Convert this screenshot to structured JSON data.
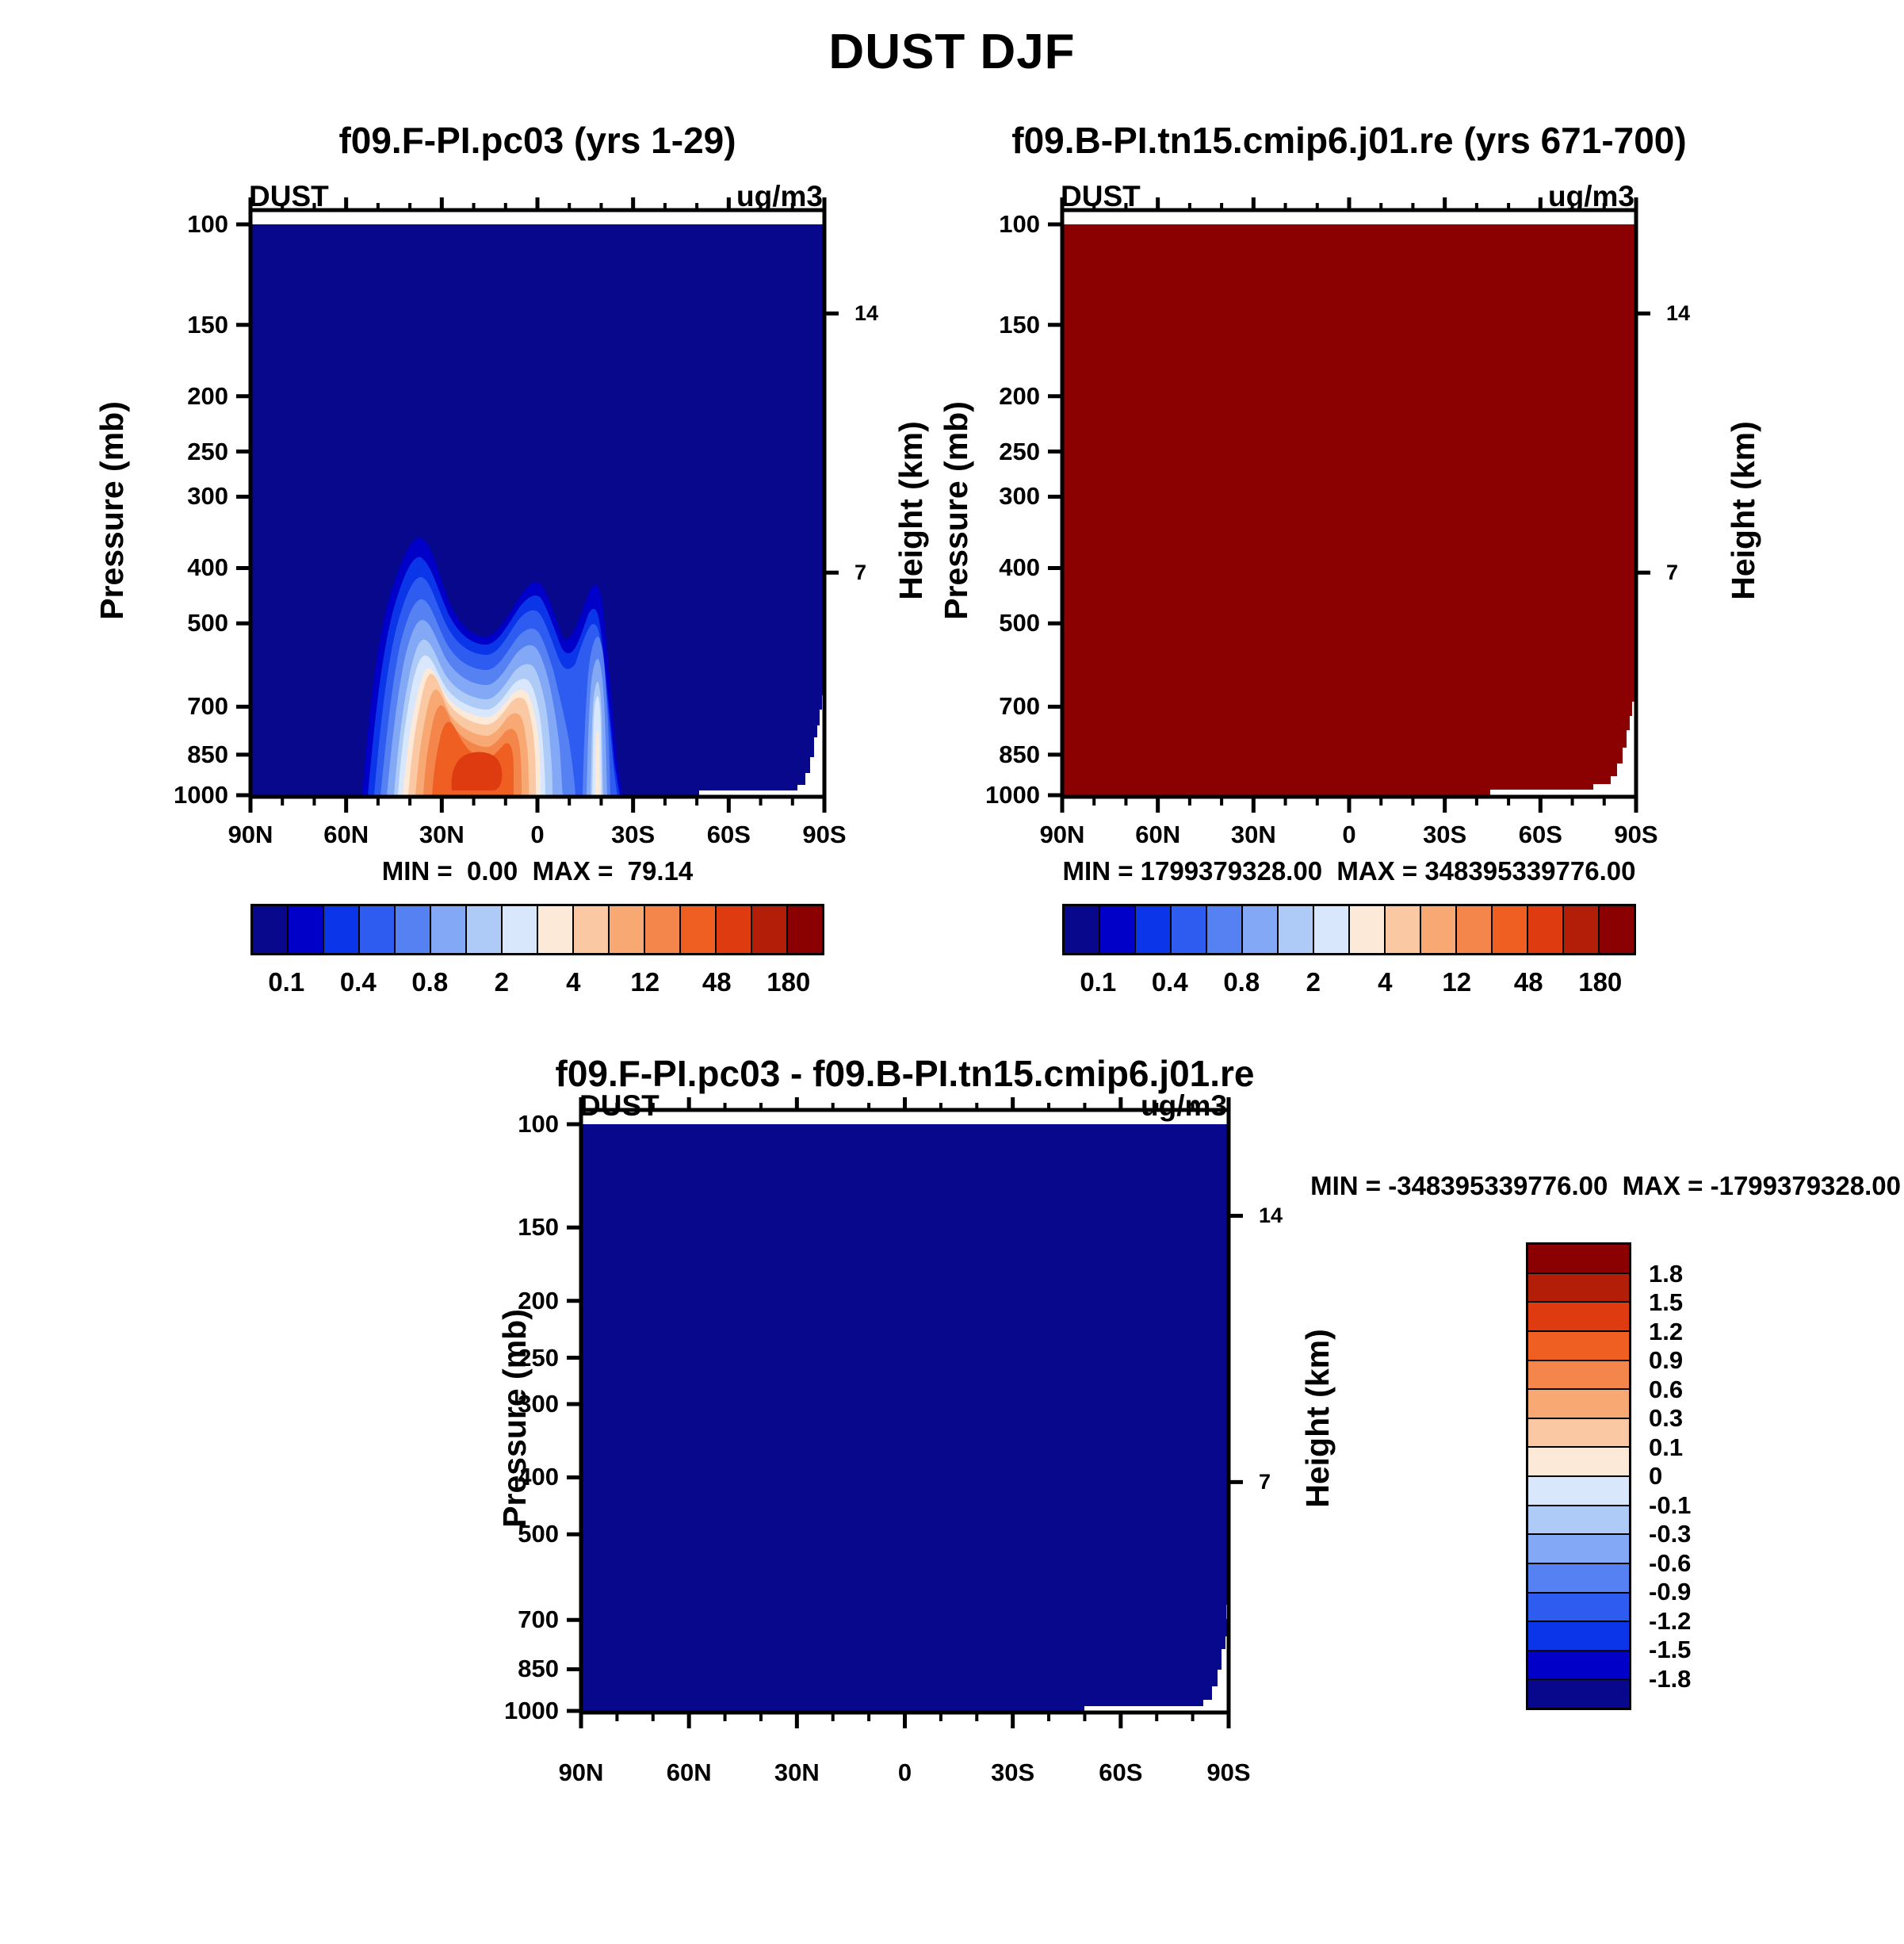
{
  "main_title": "DUST DJF",
  "panels": {
    "left": {
      "title": "f09.F-PI.pc03 (yrs 1-29)",
      "var_label": "DUST",
      "units": "ug/m3",
      "stats": "MIN =  0.00  MAX =  79.14"
    },
    "right": {
      "title": "f09.B-PI.tn15.cmip6.j01.re (yrs 671-700)",
      "var_label": "DUST",
      "units": "ug/m3",
      "stats": "MIN = 1799379328.00  MAX = 348395339776.00"
    },
    "diff": {
      "title": "f09.F-PI.pc03 - f09.B-PI.tn15.cmip6.j01.re",
      "var_label": "DUST",
      "units": "ug/m3",
      "stats": "MIN = -348395339776.00  MAX = -1799379328.00"
    }
  },
  "axes": {
    "pressure_label": "Pressure (mb)",
    "height_label": "Height (km)",
    "pressure_ticks": [
      "100",
      "150",
      "200",
      "250",
      "300",
      "400",
      "500",
      "700",
      "850",
      "1000"
    ],
    "height_ticks": [
      "14",
      "7"
    ],
    "lat_ticks": [
      "90N",
      "60N",
      "30N",
      "0",
      "30S",
      "60S",
      "90S"
    ]
  },
  "colorbar": {
    "labels": [
      "0.1",
      "0.4",
      "0.8",
      "2",
      "4",
      "12",
      "48",
      "180"
    ],
    "palette": [
      "#08088D",
      "#0000C8",
      "#0B35E8",
      "#2E5BF0",
      "#5581F2",
      "#82A8F6",
      "#AECBF8",
      "#D8E7FB",
      "#FCE9D8",
      "#FAC9A3",
      "#F7A873",
      "#F4854B",
      "#EF5F22",
      "#DE3B10",
      "#B21E08",
      "#8B0000"
    ]
  },
  "diff_colorbar": {
    "labels": [
      "1.8",
      "1.5",
      "1.2",
      "0.9",
      "0.6",
      "0.3",
      "0.1",
      "0",
      "-0.1",
      "-0.3",
      "-0.6",
      "-0.9",
      "-1.2",
      "-1.5",
      "-1.8"
    ],
    "palette": [
      "#8B0000",
      "#B21E08",
      "#DE3B10",
      "#EF5F22",
      "#F4854B",
      "#F7A873",
      "#FAC9A3",
      "#FCE9D8",
      "#D8E7FB",
      "#AECBF8",
      "#82A8F6",
      "#5581F2",
      "#2E5BF0",
      "#0B35E8",
      "#0000C8",
      "#08088D"
    ]
  },
  "chart_data": [
    {
      "type": "heatmap",
      "subtype": "latitude-pressure filled contour (zonal mean)",
      "title": "f09.F-PI.pc03 (yrs 1-29)",
      "variable": "DUST",
      "units": "ug/m3",
      "x_ticks": [
        "90N",
        "60N",
        "30N",
        "0",
        "30S",
        "60S",
        "90S"
      ],
      "ylabel": "Pressure (mb)",
      "y_ticks_mb": [
        100,
        150,
        200,
        250,
        300,
        400,
        500,
        700,
        850,
        1000
      ],
      "y2label": "Height (km)",
      "y2_ticks_km": [
        14,
        7
      ],
      "labeled_contour_levels": [
        0.1,
        0.4,
        0.8,
        2,
        4,
        12,
        48,
        180
      ],
      "n_color_bins": 16,
      "min": 0.0,
      "max": 79.14,
      "field_summary": "Dust plume between ~55N and ~30S; maximum (>48 ug/m3) near 15N-25N at 850-1000 mb; plume tops near 350-450 mb at ~37N, near the equator and ~18S; separate weak column near 18S; values below 0.1 (dark navy) elsewhere; white terrain (Antarctica) mask in bottom-right corner below ~650 mb at 90S."
    },
    {
      "type": "heatmap",
      "subtype": "latitude-pressure filled contour (zonal mean)",
      "title": "f09.B-PI.tn15.cmip6.j01.re (yrs 671-700)",
      "variable": "DUST",
      "units": "ug/m3",
      "x_ticks": [
        "90N",
        "60N",
        "30N",
        "0",
        "30S",
        "60S",
        "90S"
      ],
      "ylabel": "Pressure (mb)",
      "y_ticks_mb": [
        100,
        150,
        200,
        250,
        300,
        400,
        500,
        700,
        850,
        1000
      ],
      "y2label": "Height (km)",
      "y2_ticks_km": [
        14,
        7
      ],
      "labeled_contour_levels": [
        0.1,
        0.4,
        0.8,
        2,
        4,
        12,
        48,
        180
      ],
      "n_color_bins": 16,
      "min": 1799379328.0,
      "max": 348395339776.0,
      "field_summary": "Entire section saturated at the top color bin (>180 ug/m3, dark red) except the white Antarctica terrain mask in the bottom-right corner."
    },
    {
      "type": "heatmap",
      "subtype": "latitude-pressure filled contour difference",
      "title": "f09.F-PI.pc03 - f09.B-PI.tn15.cmip6.j01.re",
      "variable": "DUST",
      "units": "ug/m3",
      "x_ticks": [
        "90N",
        "60N",
        "30N",
        "0",
        "30S",
        "60S",
        "90S"
      ],
      "ylabel": "Pressure (mb)",
      "y_ticks_mb": [
        100,
        150,
        200,
        250,
        300,
        400,
        500,
        700,
        850,
        1000
      ],
      "y2label": "Height (km)",
      "y2_ticks_km": [
        14,
        7
      ],
      "labeled_contour_levels": [
        1.8,
        1.5,
        1.2,
        0.9,
        0.6,
        0.3,
        0.1,
        0,
        -0.1,
        -0.3,
        -0.6,
        -0.9,
        -1.2,
        -1.5,
        -1.8
      ],
      "n_color_bins": 16,
      "min": -348395339776.0,
      "max": -1799379328.0,
      "field_summary": "Entire difference section saturated at the bottom color bin (<-1.8, dark navy) except the white Antarctica terrain mask in the bottom-right corner."
    }
  ]
}
